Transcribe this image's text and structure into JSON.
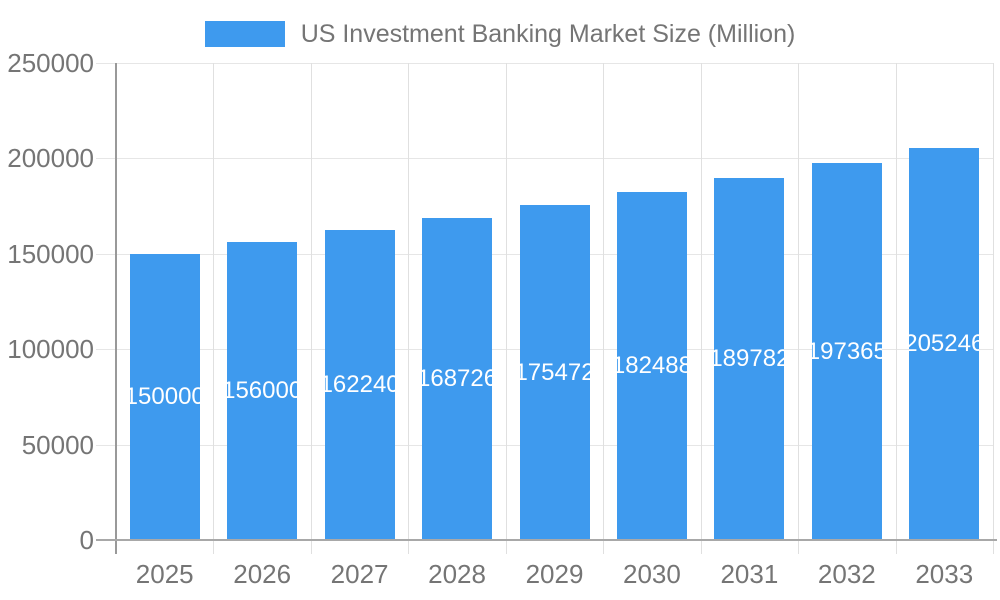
{
  "legend": {
    "swatch_color": "#3E9AEE",
    "label": "US Investment Banking Market Size (Million)"
  },
  "chart_data": {
    "type": "bar",
    "title": "US Investment Banking Market Size (Million)",
    "categories": [
      "2025",
      "2026",
      "2027",
      "2028",
      "2029",
      "2030",
      "2031",
      "2032",
      "2033"
    ],
    "values": [
      150000,
      156000,
      162240,
      168726,
      175472,
      182488,
      189782,
      197365,
      205246
    ],
    "value_labels": [
      "150000",
      "156000",
      "162240",
      "168726",
      "175472",
      "182488",
      "189782",
      "197365",
      "205246"
    ],
    "xlabel": "",
    "ylabel": "",
    "ylim": [
      0,
      250000
    ],
    "yticks": [
      0,
      50000,
      100000,
      150000,
      200000,
      250000
    ],
    "ytick_labels": [
      "0",
      "50000",
      "100000",
      "150000",
      "200000",
      "250000"
    ],
    "grid": true,
    "legend_position": "top-center",
    "colors": {
      "bar": "#3E9AEE",
      "value_label": "#ffffff",
      "axis_text": "#757575",
      "gridline": "#e6e6e6",
      "vertical_gridline": "#e0e0e0",
      "axis_line": "#9e9e9e",
      "background": "#ffffff"
    }
  }
}
